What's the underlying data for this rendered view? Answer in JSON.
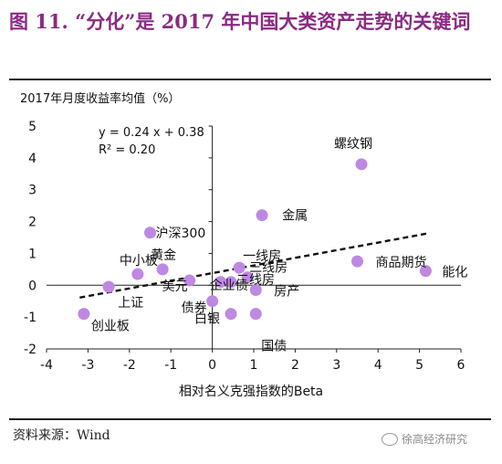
{
  "figure": {
    "title": "图 11. “分化”是 2017 年中国大类资产走势的关键词",
    "source": "资料来源：Wind",
    "watermark": "徐高经济研究"
  },
  "chart_data": {
    "type": "scatter",
    "title": "2017年月度收益率均值（%）",
    "xlabel": "相对名义克强指数的Beta",
    "ylabel": "",
    "xlim": [
      -4,
      6
    ],
    "ylim": [
      -2,
      5
    ],
    "xticks": [
      -4,
      -3,
      -2,
      -1,
      0,
      1,
      2,
      3,
      4,
      5,
      6
    ],
    "yticks": [
      -2,
      -1,
      0,
      1,
      2,
      3,
      4,
      5
    ],
    "grid": false,
    "point_color": "#bf88e3",
    "points": [
      {
        "label": "螺纹钢",
        "x": 3.6,
        "y": 3.8
      },
      {
        "label": "金属",
        "x": 1.2,
        "y": 2.2
      },
      {
        "label": "沪深300",
        "x": -1.5,
        "y": 1.65
      },
      {
        "label": "一线房",
        "x": 0.65,
        "y": 0.55
      },
      {
        "label": "三线房",
        "x": 0.85,
        "y": 0.25
      },
      {
        "label": "二线房",
        "x": 0.45,
        "y": 0.1
      },
      {
        "label": "房产",
        "x": 1.05,
        "y": -0.15
      },
      {
        "label": "商品期货",
        "x": 3.5,
        "y": 0.75
      },
      {
        "label": "能化",
        "x": 5.15,
        "y": 0.45
      },
      {
        "label": "黄金",
        "x": -1.2,
        "y": 0.5
      },
      {
        "label": "中小板",
        "x": -1.8,
        "y": 0.35
      },
      {
        "label": "美元",
        "x": -0.55,
        "y": 0.15
      },
      {
        "label": "企业债",
        "x": 0.2,
        "y": 0.1
      },
      {
        "label": "上证",
        "x": -2.5,
        "y": -0.05
      },
      {
        "label": "债券",
        "x": 0.0,
        "y": -0.5
      },
      {
        "label": "白银",
        "x": 0.45,
        "y": -0.9
      },
      {
        "label": "国债",
        "x": 1.05,
        "y": -0.9
      },
      {
        "label": "创业板",
        "x": -3.1,
        "y": -0.9
      }
    ],
    "trendline": {
      "slope": 0.24,
      "intercept": 0.38,
      "x_range": [
        -3.2,
        5.2
      ],
      "style": "dashed"
    },
    "annotations": {
      "equation": "y = 0.24 x + 0.38",
      "r_squared": "R² = 0.20"
    }
  }
}
